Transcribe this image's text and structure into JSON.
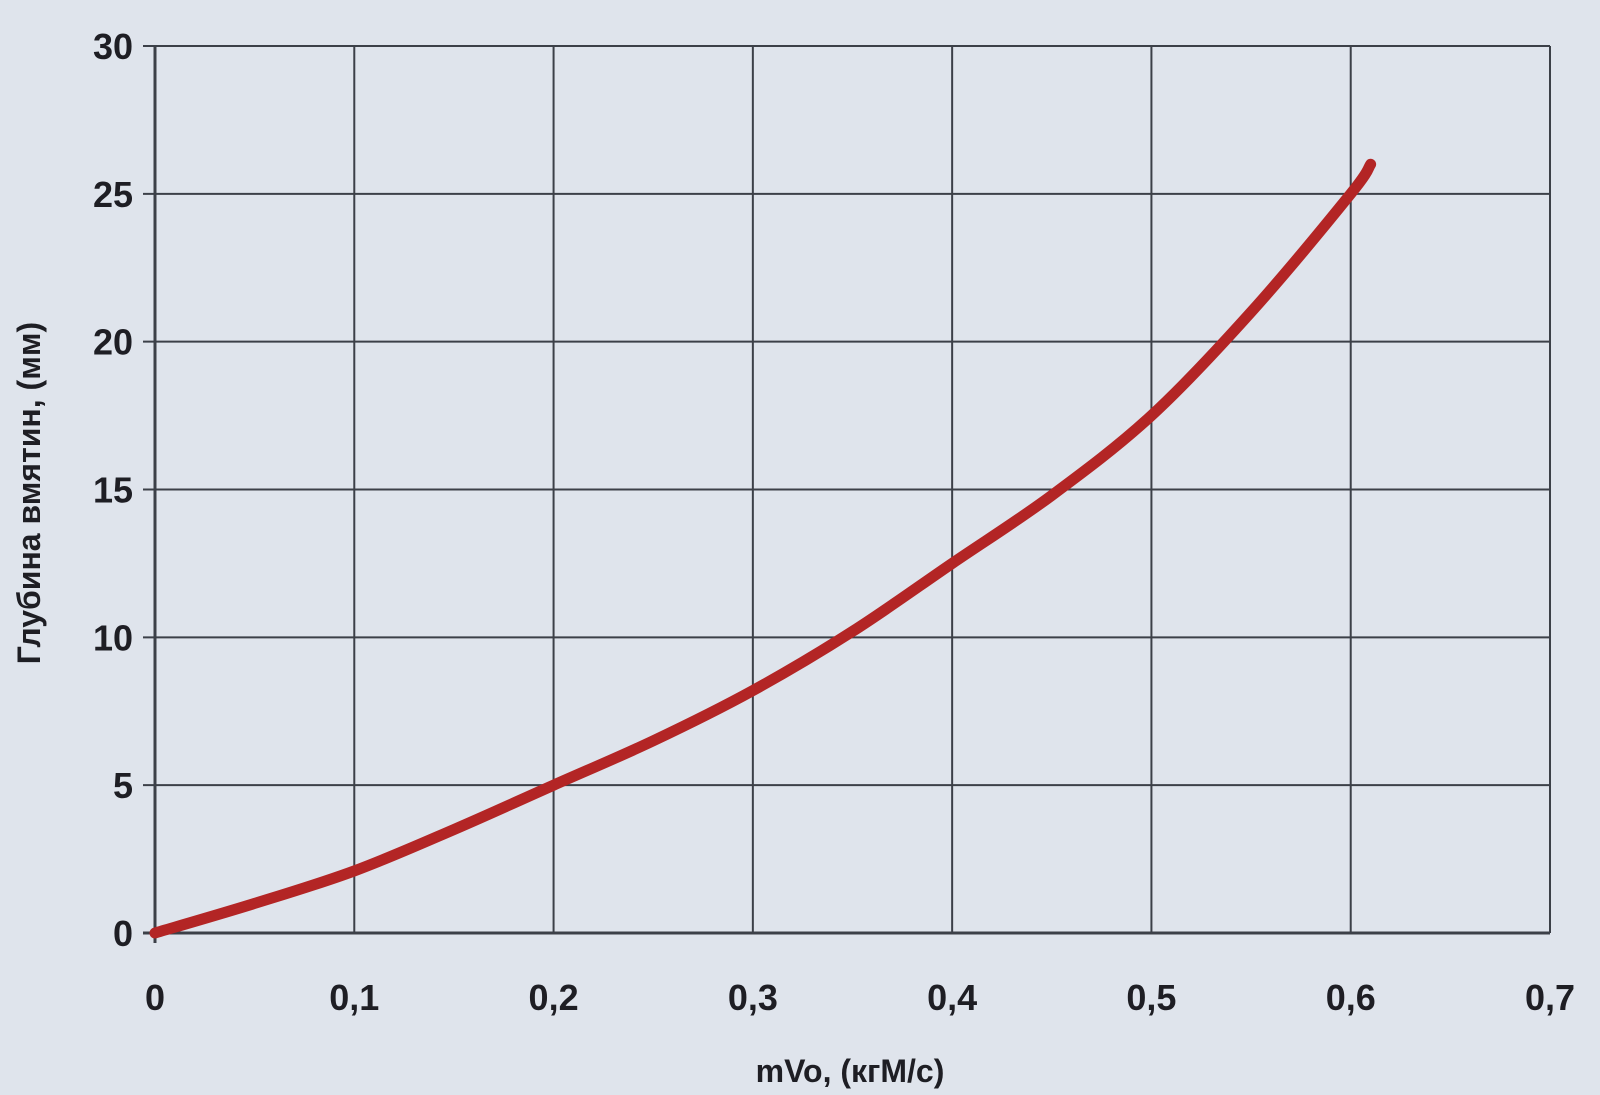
{
  "chart_data": {
    "type": "line",
    "xlabel": "mVo, (кгМ/с)",
    "ylabel": "Глубина вмятин, (мм)",
    "xlim": [
      0,
      0.7
    ],
    "ylim": [
      0,
      30
    ],
    "x_ticks": [
      "0",
      "0,1",
      "0,2",
      "0,3",
      "0,4",
      "0,5",
      "0,6",
      "0,7"
    ],
    "y_ticks": [
      "0",
      "5",
      "10",
      "15",
      "20",
      "25",
      "30"
    ],
    "grid": true,
    "series": [
      {
        "x": [
          0,
          0.05,
          0.1,
          0.15,
          0.2,
          0.25,
          0.3,
          0.35,
          0.4,
          0.45,
          0.5,
          0.55,
          0.6,
          0.61
        ],
        "y": [
          0,
          1.0,
          2.1,
          3.5,
          5.0,
          6.5,
          8.2,
          10.2,
          12.5,
          14.8,
          17.5,
          21.0,
          25.0,
          26.0
        ]
      }
    ],
    "colors": {
      "line": "#b32525",
      "grid": "#3c4048",
      "background": "#dfe4ec",
      "text": "#1e1e24"
    }
  }
}
